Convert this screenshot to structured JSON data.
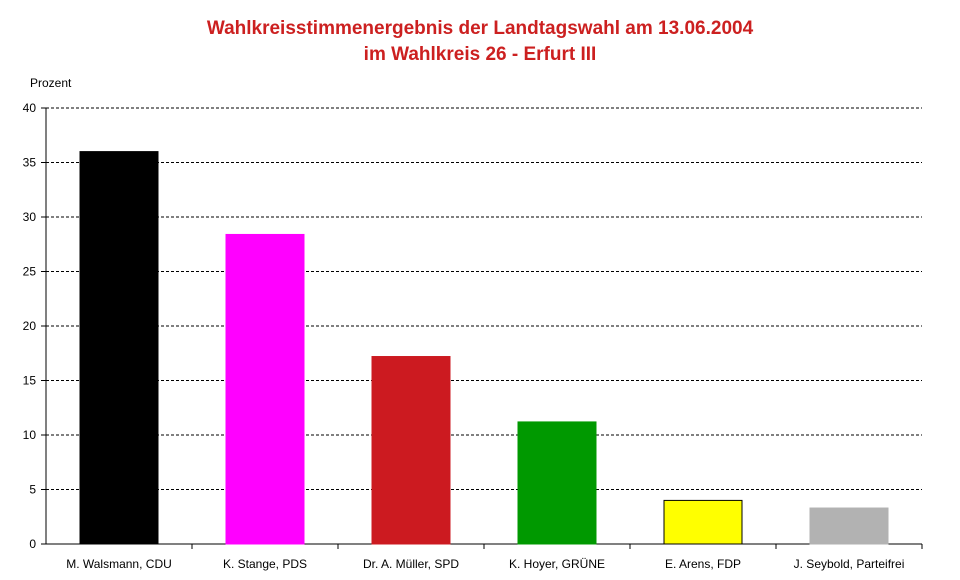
{
  "chart_data": {
    "type": "bar",
    "title": "Wahlkreisstimmenergebnis der Landtagswahl am 13.06.2004",
    "subtitle": "im Wahlkreis 26 - Erfurt III",
    "ylabel": "Prozent",
    "xlabel": "",
    "ylim": [
      0,
      40
    ],
    "yticks": [
      0,
      5,
      10,
      15,
      20,
      25,
      30,
      35,
      40
    ],
    "grid": true,
    "categories": [
      "M. Walsmann, CDU",
      "K. Stange, PDS",
      "Dr. A. Müller, SPD",
      "K. Hoyer, GRÜNE",
      "E. Arens, FDP",
      "J. Seybold, Parteifrei"
    ],
    "values": [
      36.0,
      28.4,
      17.2,
      11.2,
      4.0,
      3.3
    ],
    "colors": [
      "#000000",
      "#ff00ff",
      "#cc1a20",
      "#009900",
      "#ffff00",
      "#b2b2b2"
    ]
  }
}
